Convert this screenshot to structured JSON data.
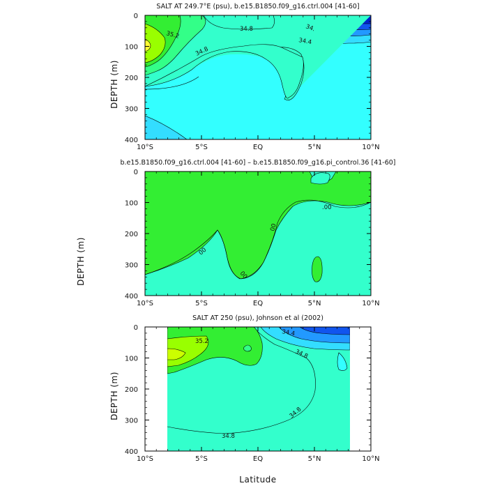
{
  "chart_data": [
    {
      "type": "contour",
      "title": "SALT AT 249.7°E (psu), b.e15.B1850.f09_g16.ctrl.004 [41-60]",
      "xlabel": "",
      "ylabel": "DEPTH (m)",
      "xlim": [
        -10,
        10
      ],
      "ylim": [
        400,
        0
      ],
      "x_ticks": [
        "10°S",
        "5°S",
        "EQ",
        "5°N",
        "10°N"
      ],
      "y_ticks": [
        0,
        100,
        200,
        300,
        400
      ],
      "contour_labels": [
        "35.2",
        "34.8",
        "34.8",
        "34.4",
        "34."
      ],
      "colors": {
        "bg": "#33ffff",
        "low1": "#33ddff",
        "low2": "#2299ff",
        "low3": "#1155ee",
        "low4": "#0022cc",
        "high1": "#33ffcc",
        "high2": "#33ff88",
        "high3": "#33ee33",
        "high4": "#99ff00",
        "high5": "#ffff33"
      }
    },
    {
      "type": "contour",
      "title": "b.e15.B1850.f09_g16.ctrl.004 [41-60] – b.e15.B1850.f09_g16.pi_control.36 [41-60]",
      "xlabel": "",
      "ylabel": "DEPTH (m)",
      "xlim": [
        -10,
        10
      ],
      "ylim": [
        400,
        0
      ],
      "x_ticks": [
        "10°S",
        "5°S",
        "EQ",
        "5°N",
        "10°N"
      ],
      "y_ticks": [
        0,
        100,
        200,
        300,
        400
      ],
      "contour_labels": [
        "00",
        "00",
        ".00",
        "00"
      ],
      "colors": {
        "positive": "#33ee33",
        "negative": "#33ffcc"
      }
    },
    {
      "type": "contour",
      "title": "SALT AT 250 (psu), Johnson et al (2002)",
      "xlabel": "Latitude",
      "ylabel": "DEPTH (m)",
      "xlim": [
        -10,
        10
      ],
      "ylim": [
        400,
        0
      ],
      "x_ticks": [
        "10°S",
        "5°S",
        "EQ",
        "5°N",
        "10°N"
      ],
      "y_ticks": [
        0,
        100,
        200,
        300,
        400
      ],
      "contour_labels": [
        "35.2",
        "34.4",
        "34.8",
        "34.8",
        "34.8"
      ],
      "data_extent_lat": [
        -8,
        8
      ]
    }
  ]
}
